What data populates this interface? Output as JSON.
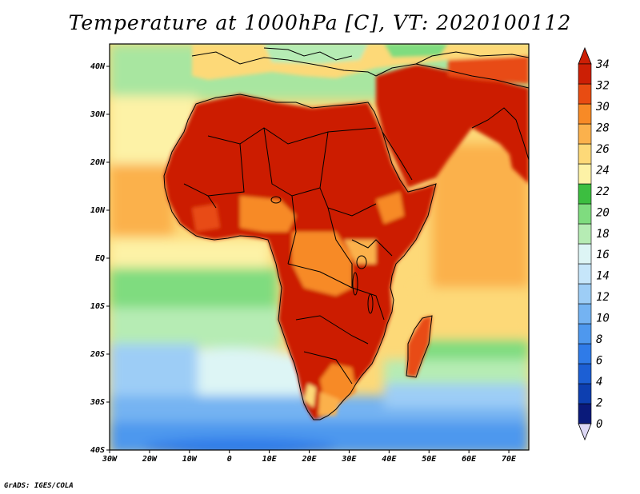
{
  "title": "Temperature at 1000hPa [C], VT: 2020100112",
  "credit": "GrADS: IGES/COLA",
  "x_ticks": [
    "30W",
    "20W",
    "10W",
    "0",
    "10E",
    "20E",
    "30E",
    "40E",
    "50E",
    "60E",
    "70E"
  ],
  "y_ticks": [
    "40N",
    "30N",
    "20N",
    "10N",
    "EQ",
    "10S",
    "20S",
    "30S",
    "40S"
  ],
  "colorbar": {
    "labels": [
      "0",
      "2",
      "4",
      "6",
      "8",
      "10",
      "12",
      "14",
      "16",
      "18",
      "20",
      "22",
      "24",
      "26",
      "28",
      "30",
      "32",
      "34"
    ],
    "colors": [
      "#0a1a7a",
      "#0d3fb0",
      "#1c5fd4",
      "#2f7be8",
      "#4e98ee",
      "#74b3f2",
      "#9dcdf6",
      "#c6e6fa",
      "#ddf5f5",
      "#b6ecb4",
      "#7fdc7f",
      "#3cbe40",
      "#fdf2a6",
      "#fdd978",
      "#fbb14c",
      "#f78a26",
      "#e84c12",
      "#cc1f05"
    ],
    "under_color": "#ddd8f5"
  },
  "map_region": {
    "lon_range": [
      -30,
      75
    ],
    "lat_range": [
      -40,
      45
    ],
    "variable": "Temperature at 1000hPa",
    "units": "C"
  }
}
